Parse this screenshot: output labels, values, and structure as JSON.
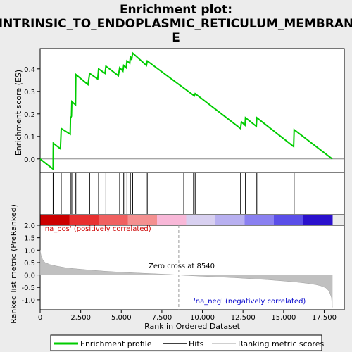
{
  "chart_data": {
    "type": "line",
    "title_lines": [
      "Enrichment plot:",
      "INTRINSIC_TO_ENDOPLASMIC_RETICULUM_MEMBRAN",
      "E"
    ],
    "top_panel": {
      "ylabel": "Enrichment score (ES)",
      "ylim": [
        -0.06,
        0.49
      ],
      "yticks": [
        0.0,
        0.1,
        0.2,
        0.3,
        0.4
      ],
      "ytick_labels": [
        "0.0",
        "0.1",
        "0.2",
        "0.3",
        "0.4"
      ],
      "series": [
        {
          "name": "Enrichment profile",
          "color": "#00cc00",
          "x": [
            0,
            800,
            810,
            1250,
            1300,
            1850,
            1870,
            1930,
            1950,
            2180,
            2200,
            2950,
            3050,
            3550,
            3600,
            4000,
            4050,
            4820,
            4900,
            5100,
            5150,
            5300,
            5350,
            5520,
            5560,
            5640,
            5700,
            6550,
            6600,
            9500,
            9550,
            12350,
            12400,
            12620,
            12650,
            13320,
            13350,
            15620,
            15650,
            18000
          ],
          "y": [
            0.0,
            -0.045,
            0.07,
            0.045,
            0.135,
            0.11,
            0.18,
            0.19,
            0.255,
            0.24,
            0.375,
            0.33,
            0.38,
            0.355,
            0.4,
            0.38,
            0.412,
            0.37,
            0.405,
            0.39,
            0.415,
            0.405,
            0.435,
            0.425,
            0.455,
            0.44,
            0.47,
            0.415,
            0.435,
            0.28,
            0.29,
            0.135,
            0.165,
            0.15,
            0.183,
            0.145,
            0.183,
            0.055,
            0.13,
            0.0
          ]
        }
      ]
    },
    "hits": [
      800,
      1300,
      1870,
      1950,
      2200,
      3050,
      3600,
      4050,
      4900,
      5150,
      5350,
      5560,
      5700,
      6600,
      8850,
      9450,
      9550,
      12350,
      12650,
      13350,
      15650
    ],
    "bottom_panel": {
      "ylabel": "Ranked list metric (PreRanked)",
      "xlabel": "Rank in Ordered Dataset",
      "ylim": [
        -1.4,
        2.0
      ],
      "yticks": [
        2.0,
        1.5,
        1.0,
        0.5,
        0.0,
        -0.5,
        -1.0
      ],
      "ytick_labels": [
        "2.0",
        "1.5",
        "1.0",
        "0.5",
        "0.0",
        "-0.5",
        "-1.0"
      ],
      "xlim": [
        0,
        18000
      ],
      "xticks": [
        0,
        2500,
        5000,
        7500,
        10000,
        12500,
        15000,
        17500
      ],
      "xtick_labels": [
        "0",
        "2,500",
        "5,000",
        "7,500",
        "10,000",
        "12,500",
        "15,000",
        "17,500"
      ],
      "metric_x": [
        0,
        50,
        150,
        300,
        600,
        1000,
        1500,
        2000,
        3000,
        4000,
        5000,
        6000,
        7000,
        8000,
        8540,
        9000,
        10000,
        11000,
        12000,
        13000,
        14000,
        15000,
        15500,
        16000,
        16500,
        17000,
        17300,
        17600,
        17800,
        17950,
        18000
      ],
      "metric_y": [
        1.0,
        0.8,
        0.62,
        0.5,
        0.42,
        0.36,
        0.3,
        0.26,
        0.2,
        0.15,
        0.11,
        0.08,
        0.05,
        0.02,
        0.0,
        -0.02,
        -0.05,
        -0.08,
        -0.11,
        -0.15,
        -0.19,
        -0.24,
        -0.27,
        -0.3,
        -0.34,
        -0.39,
        -0.44,
        -0.52,
        -0.65,
        -0.9,
        -1.3
      ],
      "zero_cross_rank": 8540,
      "zero_cross_text": "Zero cross at 8540",
      "pos_label": "'na_pos' (positively correlated)",
      "neg_label": "'na_neg' (negatively correlated)",
      "pos_label_color": "#cc0000",
      "neg_label_color": "#0000cc"
    },
    "legend": {
      "placement": "bottom",
      "entries": [
        "Enrichment profile",
        "Hits",
        "Ranking metric scores"
      ],
      "colors": [
        "#00cc00",
        "#000000",
        "#c0c0c0"
      ]
    },
    "colorbar_colors": [
      "#cc0000",
      "#e83030",
      "#f06060",
      "#f49090",
      "#f8b8d8",
      "#d8d0f0",
      "#b8b0f0",
      "#8a80f0",
      "#5a4ee8",
      "#2a10cc"
    ]
  }
}
